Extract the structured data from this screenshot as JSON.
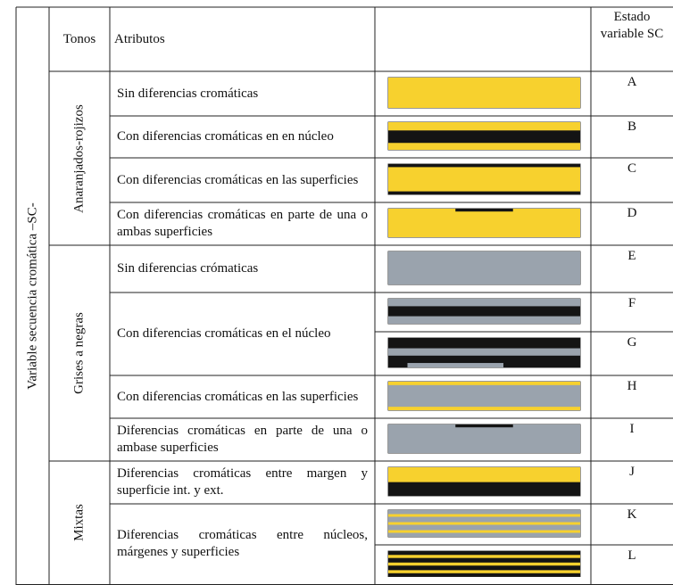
{
  "table": {
    "row_header": "Variable secuencia cromática –SC-",
    "headers": [
      "Tonos",
      "Atributos",
      "Estado variable SC"
    ],
    "groups": [
      {
        "name": "Anaranjados-rojizos",
        "rows": [
          {
            "attribute": "Sin diferencias cromáticas",
            "states": [
              "A"
            ]
          },
          {
            "attribute": "Con diferencias cromáticas en en núcleo",
            "states": [
              "B"
            ]
          },
          {
            "attribute": "Con diferencias cromáticas en las superficies",
            "states": [
              "C"
            ]
          },
          {
            "attribute": "Con diferencias cromáticas en parte de una o ambas superficies",
            "states": [
              "D"
            ]
          }
        ]
      },
      {
        "name": "Grises a negras",
        "rows": [
          {
            "attribute": "Sin diferencias crómaticas",
            "states": [
              "E"
            ]
          },
          {
            "attribute": "Con diferencias cromáticas en el núcleo",
            "states": [
              "F",
              "G"
            ]
          },
          {
            "attribute": "Con diferencias cromáticas en las superficies",
            "states": [
              "H"
            ]
          },
          {
            "attribute": "Diferencias cromáticas en parte de una o ambase superficies",
            "states": [
              "I"
            ]
          }
        ]
      },
      {
        "name": "Mixtas",
        "rows": [
          {
            "attribute": "Diferencias cromáticas entre margen y superficie int. y ext.",
            "states": [
              "J"
            ]
          },
          {
            "attribute": "Diferencias cromáticas entre núcleos, márgenes y superficies",
            "states": [
              "K",
              "L"
            ]
          }
        ]
      }
    ]
  }
}
